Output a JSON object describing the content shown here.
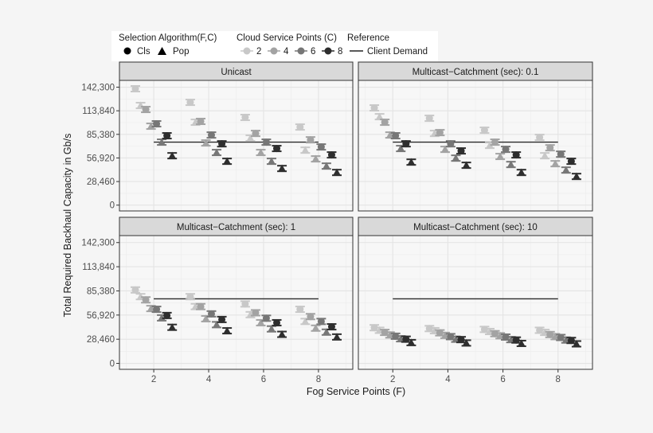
{
  "chart_data": {
    "type": "scatter",
    "xlabel": "Fog Service Points (F)",
    "ylabel": "Total Required Backhaul Capacity in Gb/s",
    "x_ticks": [
      2,
      4,
      6,
      8
    ],
    "y_ticks": [
      0,
      28460,
      56920,
      85380,
      113840,
      142300
    ],
    "y_tick_labels": [
      "0",
      "28,460",
      "56,920",
      "85,380",
      "113,840",
      "142,300"
    ],
    "xlim": [
      0.75,
      9.25
    ],
    "ylim": [
      -7000,
      150500
    ],
    "grid": true,
    "legend": {
      "placement": "top",
      "algorithm_title": "Selection Algorithm(F,C)",
      "algorithms": [
        {
          "label": "Cls",
          "shape": "circle"
        },
        {
          "label": "Pop",
          "shape": "triangle"
        }
      ],
      "csp_title": "Cloud Service Points (C)",
      "csp": [
        {
          "label": "2",
          "color": "#c8c8c8"
        },
        {
          "label": "4",
          "color": "#a3a3a3"
        },
        {
          "label": "6",
          "color": "#777777"
        },
        {
          "label": "8",
          "color": "#2e2e2e"
        }
      ],
      "reference_title": "Reference",
      "reference_label": "Client Demand"
    },
    "series_order": [
      "C2-Cls",
      "C2-Pop",
      "C4-Cls",
      "C4-Pop",
      "C6-Cls",
      "C6-Pop",
      "C8-Cls",
      "C8-Pop"
    ],
    "client_demand": 76000,
    "client_demand_x": [
      2,
      8
    ],
    "panels": [
      {
        "title": "Unicast",
        "values": {
          "2": [
            140400,
            120200,
            115400,
            95200,
            98100,
            76000,
            83700,
            59600
          ],
          "4": [
            124000,
            100000,
            101000,
            75000,
            84600,
            63500,
            74000,
            52900
          ],
          "6": [
            105800,
            80800,
            86500,
            63500,
            76000,
            52900,
            68300,
            44200
          ],
          "8": [
            94200,
            66300,
            78800,
            55800,
            70200,
            47100,
            60600,
            39400
          ]
        }
      },
      {
        "title": "Multicast−Catchment (sec): 0.1",
        "values": {
          "2": [
            117300,
            106700,
            100000,
            84600,
            83700,
            68300,
            74000,
            51900
          ],
          "4": [
            104800,
            86500,
            87500,
            67300,
            74000,
            56700,
            65400,
            48100
          ],
          "6": [
            90400,
            72100,
            76000,
            58700,
            67300,
            49000,
            60600,
            39400
          ],
          "8": [
            81700,
            59600,
            69200,
            50000,
            61500,
            42300,
            52900,
            34600
          ]
        }
      },
      {
        "title": "Multicast−Catchment (sec): 1",
        "values": {
          "2": [
            86500,
            78600,
            74800,
            64600,
            63700,
            53600,
            56400,
            42500
          ],
          "4": [
            78600,
            66900,
            66900,
            52600,
            58300,
            45600,
            51700,
            38400
          ],
          "6": [
            70000,
            57400,
            59600,
            47900,
            53200,
            40600,
            47900,
            34200
          ],
          "8": [
            63700,
            49400,
            55100,
            41500,
            49400,
            36800,
            43100,
            31100
          ]
        }
      },
      {
        "title": "Multicast−Catchment (sec): 10",
        "values": {
          "2": [
            42000,
            39000,
            36500,
            33500,
            32000,
            29000,
            28500,
            24500
          ],
          "4": [
            41000,
            38500,
            36000,
            33000,
            31500,
            28500,
            28000,
            24000
          ],
          "6": [
            40000,
            37500,
            35000,
            32500,
            31000,
            28000,
            27500,
            23500
          ],
          "8": [
            39000,
            36500,
            34000,
            31500,
            30500,
            27500,
            27000,
            23000
          ]
        }
      }
    ]
  }
}
